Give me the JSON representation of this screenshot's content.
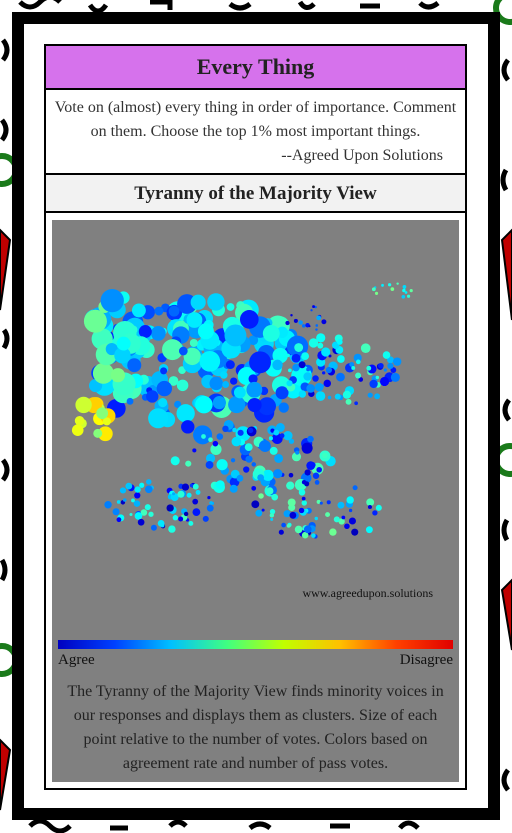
{
  "header": {
    "title": "Every Thing"
  },
  "description": {
    "text": "Vote on (almost) every thing in order of importance. Comment on them. Choose the top 1% most important things.",
    "attribution": "--Agreed Upon Solutions"
  },
  "view": {
    "title": "Tyranny of the Majority View",
    "watermark": "www.agreedupon.solutions",
    "legend": {
      "low": "Agree",
      "high": "Disagree"
    },
    "caption": "The Tyranny of the Majority View finds minority voices in our responses and displays them as clusters. Size of each point relative to the number of votes. Colors based on agreement rate and number of pass votes."
  }
}
